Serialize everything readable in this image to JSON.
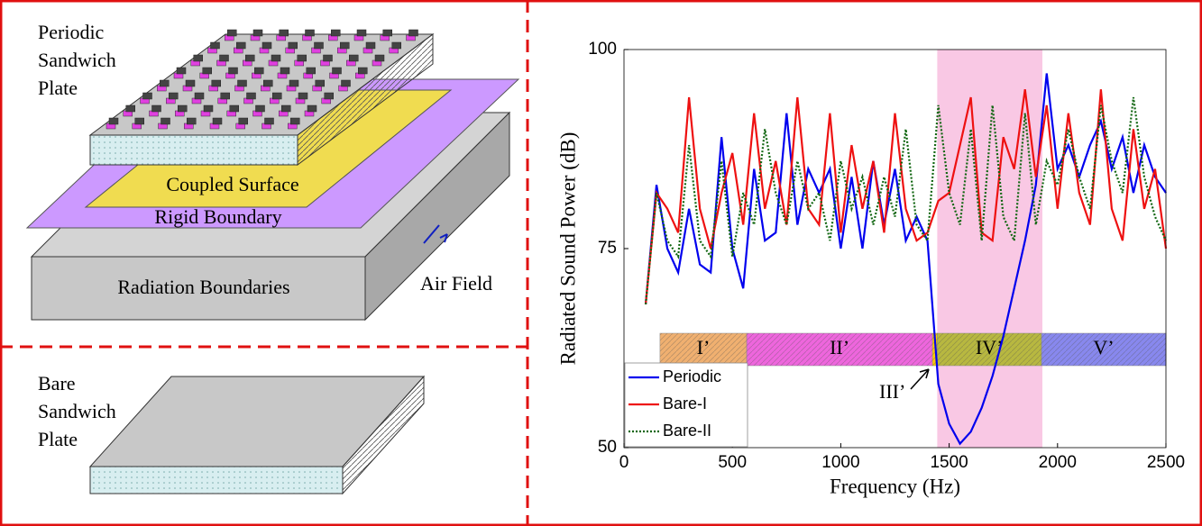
{
  "diagram": {
    "periodic_plate": [
      "Periodic",
      "Sandwich",
      "Plate"
    ],
    "coupled_surface": "Coupled Surface",
    "rigid_boundary": "Rigid Boundary",
    "radiation_boundaries": "Radiation Boundaries",
    "air_field": "Air Field",
    "bare_plate": [
      "Bare",
      "Sandwich",
      "Plate"
    ]
  },
  "chart_data": {
    "type": "line",
    "x_label": "Frequency (Hz)",
    "y_label": "Radiated Sound Power (dB)",
    "xlim": [
      0,
      2500
    ],
    "ylim": [
      50,
      100
    ],
    "xticks": [
      0,
      500,
      1000,
      1500,
      2000,
      2500
    ],
    "yticks": [
      50,
      75,
      100
    ],
    "x": [
      100,
      150,
      200,
      250,
      300,
      350,
      400,
      450,
      500,
      550,
      600,
      650,
      700,
      750,
      800,
      850,
      900,
      950,
      1000,
      1050,
      1100,
      1150,
      1200,
      1250,
      1300,
      1350,
      1400,
      1450,
      1500,
      1550,
      1600,
      1650,
      1700,
      1750,
      1800,
      1850,
      1900,
      1950,
      2000,
      2050,
      2100,
      2150,
      2200,
      2250,
      2300,
      2350,
      2400,
      2450,
      2500
    ],
    "series": [
      {
        "name": "Periodic",
        "color": "#0000ee",
        "dash": "solid",
        "values": [
          68,
          83,
          75,
          72,
          80,
          73,
          72,
          89,
          75,
          70,
          85,
          76,
          77,
          92,
          78,
          85,
          82,
          85,
          75,
          84,
          75,
          86,
          78,
          85,
          76,
          79,
          76,
          58,
          53,
          50.5,
          52,
          55,
          59,
          64,
          70,
          76,
          83,
          97,
          85,
          88,
          84,
          88,
          91,
          85,
          89,
          82,
          88,
          84,
          82
        ]
      },
      {
        "name": "Bare-I",
        "color": "#ee1111",
        "dash": "solid",
        "values": [
          68,
          82,
          80,
          77,
          94,
          80,
          75,
          82,
          87,
          78,
          92,
          80,
          86,
          78,
          94,
          80,
          78,
          92,
          77,
          88,
          80,
          86,
          77,
          92,
          80,
          76,
          77,
          81,
          82,
          88,
          94,
          77,
          76,
          89,
          85,
          95,
          84,
          93,
          80,
          92,
          82,
          78,
          95,
          80,
          76,
          90,
          80,
          85,
          75
        ]
      },
      {
        "name": "Bare-II",
        "color": "#116611",
        "dash": "dotted",
        "values": [
          68,
          82,
          76,
          74,
          88,
          76,
          74,
          86,
          74,
          82,
          78,
          90,
          82,
          78,
          86,
          80,
          82,
          76,
          86,
          80,
          84,
          78,
          84,
          79,
          90,
          78,
          76,
          93,
          82,
          78,
          90,
          76,
          93,
          79,
          76,
          92,
          78,
          86,
          83,
          90,
          84,
          80,
          93,
          86,
          82,
          94,
          84,
          79,
          76
        ]
      }
    ],
    "shaded_xlim": [
      1445,
      1930
    ],
    "shaded_color": "#f9c8e4",
    "regions": [
      {
        "label": "I’",
        "x": [
          166,
          566
        ],
        "color": "#f0b070"
      },
      {
        "label": "II’",
        "x": [
          566,
          1423
        ],
        "color": "#ee66dd"
      },
      {
        "label": "III’",
        "x": [
          1423,
          1445
        ],
        "color": "#ffcc00"
      },
      {
        "label": "IV’",
        "x": [
          1445,
          1926
        ],
        "color": "#b8b840"
      },
      {
        "label": "V’",
        "x": [
          1926,
          2500
        ],
        "color": "#8888ee"
      }
    ],
    "legend": "lower left"
  }
}
